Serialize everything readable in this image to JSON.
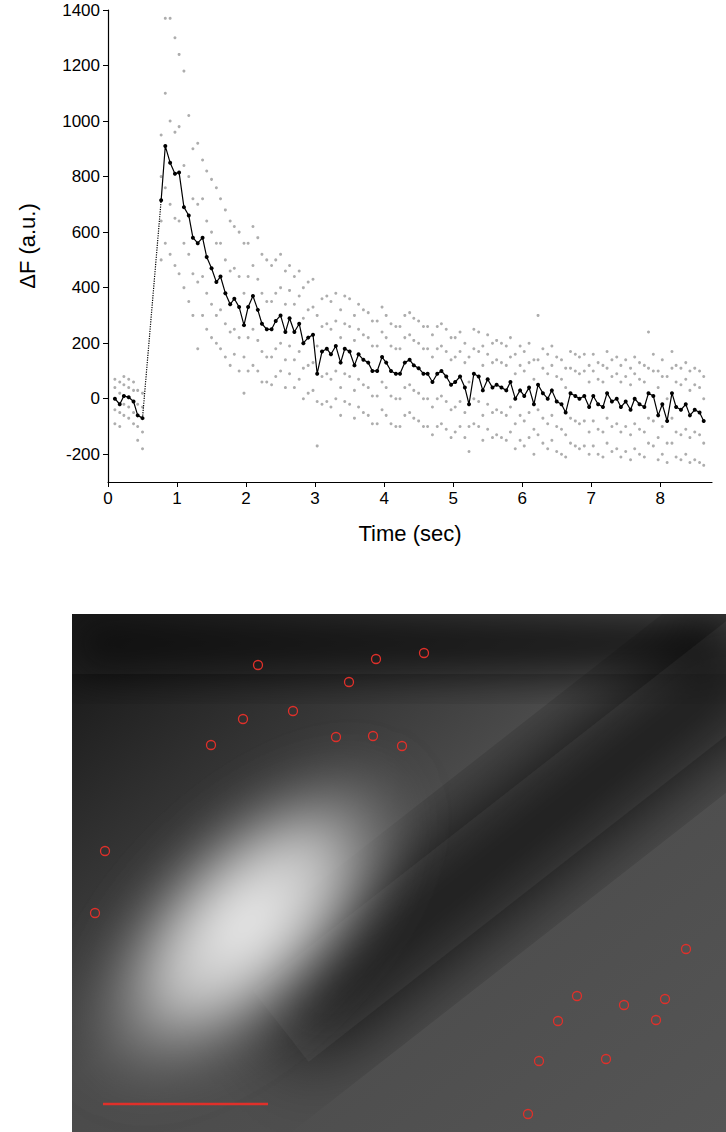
{
  "chart_data": {
    "type": "scatter",
    "x_label": "Time (sec)",
    "y_label": "ΔF (a.u.)",
    "xlim": [
      0,
      8.75
    ],
    "xticks": [
      0,
      1,
      2,
      3,
      4,
      5,
      6,
      7,
      8
    ],
    "ylim": [
      -300,
      1400
    ],
    "yticks": [
      -200,
      0,
      200,
      400,
      600,
      800,
      1000,
      1200,
      1400
    ],
    "grid": false,
    "series": [
      {
        "type": "scatter",
        "color": "#999999",
        "marker": "circle",
        "x": [
          0.1,
          0.17,
          0.23,
          0.3,
          0.37,
          0.43,
          0.5,
          0.77,
          0.83,
          0.9,
          0.97,
          1.03,
          1.1,
          1.17,
          1.23,
          1.3,
          1.37,
          1.43,
          1.5,
          1.57,
          1.63,
          1.7,
          1.77,
          1.83,
          1.9,
          1.97,
          2.03,
          2.1,
          2.17,
          2.23,
          2.3,
          2.37,
          2.43,
          2.5,
          2.57,
          2.63,
          2.7,
          2.77,
          2.83,
          2.9,
          2.97,
          3.03,
          3.1,
          3.17,
          3.23,
          3.3,
          3.37,
          3.43,
          3.5,
          3.57,
          3.63,
          3.7,
          3.77,
          3.83,
          3.9,
          3.97,
          4.03,
          4.1,
          4.17,
          4.23,
          4.3,
          4.37,
          4.43,
          4.5,
          4.57,
          4.63,
          4.7,
          4.77,
          4.83,
          4.9,
          4.97,
          5.03,
          5.1,
          5.17,
          5.23,
          5.3,
          5.37,
          5.43,
          5.5,
          5.57,
          5.63,
          5.7,
          5.77,
          5.83,
          5.9,
          5.97,
          6.03,
          6.1,
          6.17,
          6.23,
          6.3,
          6.37,
          6.43,
          6.5,
          6.57,
          6.63,
          6.7,
          6.77,
          6.83,
          6.9,
          6.97,
          7.03,
          7.1,
          7.17,
          7.23,
          7.3,
          7.37,
          7.43,
          7.5,
          7.57,
          7.63,
          7.7,
          7.77,
          7.83,
          7.9,
          7.97,
          8.03,
          8.1,
          8.17,
          8.23,
          8.3,
          8.37,
          8.43,
          8.5,
          8.57,
          8.63
        ],
        "values": [
          [
            -90,
            -40,
            40,
            70
          ],
          [
            -100,
            -50,
            20,
            60
          ],
          [
            -60,
            -20,
            50,
            80
          ],
          [
            -70,
            -30,
            40,
            70
          ],
          [
            -90,
            -50,
            30,
            60
          ],
          [
            -150,
            -100,
            -20,
            30
          ],
          [
            -180,
            -120,
            -30,
            20
          ],
          [
            500,
            640,
            800,
            950
          ],
          [
            560,
            760,
            1100,
            1370
          ],
          [
            520,
            700,
            1000,
            1370
          ],
          [
            480,
            650,
            960,
            1300
          ],
          [
            450,
            640,
            980,
            1240
          ],
          [
            400,
            560,
            840,
            1180
          ],
          [
            350,
            520,
            800,
            1020
          ],
          [
            300,
            450,
            720,
            900
          ],
          [
            180,
            420,
            700,
            920
          ],
          [
            300,
            440,
            720,
            860
          ],
          [
            250,
            380,
            640,
            820
          ],
          [
            220,
            340,
            600,
            790
          ],
          [
            200,
            300,
            560,
            760
          ],
          [
            180,
            320,
            560,
            720
          ],
          [
            150,
            270,
            500,
            680
          ],
          [
            120,
            240,
            460,
            640
          ],
          [
            160,
            250,
            470,
            620
          ],
          [
            100,
            220,
            440,
            600
          ],
          [
            20,
            150,
            380,
            560
          ],
          [
            100,
            220,
            440,
            560
          ],
          [
            120,
            250,
            480,
            620
          ],
          [
            100,
            210,
            430,
            580
          ],
          [
            60,
            170,
            380,
            520
          ],
          [
            60,
            150,
            350,
            500
          ],
          [
            50,
            150,
            350,
            480
          ],
          [
            80,
            180,
            380,
            500
          ],
          [
            100,
            200,
            400,
            520
          ],
          [
            40,
            140,
            340,
            460
          ],
          [
            90,
            190,
            390,
            480
          ],
          [
            40,
            140,
            340,
            440
          ],
          [
            70,
            170,
            370,
            460
          ],
          [
            0,
            110,
            290,
            400
          ],
          [
            20,
            120,
            320,
            420
          ],
          [
            30,
            130,
            330,
            430
          ],
          [
            -170,
            -10,
            190,
            300
          ],
          [
            -20,
            80,
            260,
            360
          ],
          [
            -10,
            90,
            270,
            370
          ],
          [
            -30,
            70,
            250,
            350
          ],
          [
            0,
            100,
            280,
            380
          ],
          [
            -60,
            40,
            220,
            320
          ],
          [
            -10,
            90,
            270,
            370
          ],
          [
            -20,
            80,
            260,
            360
          ],
          [
            -70,
            30,
            210,
            300
          ],
          [
            -30,
            70,
            250,
            340
          ],
          [
            -50,
            50,
            230,
            320
          ],
          [
            -60,
            40,
            220,
            310
          ],
          [
            -90,
            10,
            190,
            280
          ],
          [
            -90,
            10,
            190,
            280
          ],
          [
            -40,
            60,
            240,
            330
          ],
          [
            -60,
            40,
            220,
            300
          ],
          [
            -90,
            10,
            190,
            270
          ],
          [
            -100,
            0,
            180,
            260
          ],
          [
            -100,
            0,
            180,
            260
          ],
          [
            -60,
            40,
            220,
            300
          ],
          [
            -50,
            50,
            230,
            310
          ],
          [
            -70,
            30,
            210,
            290
          ],
          [
            -80,
            20,
            200,
            280
          ],
          [
            -100,
            0,
            180,
            260
          ],
          [
            -100,
            0,
            180,
            260
          ],
          [
            -130,
            -30,
            150,
            230
          ],
          [
            -100,
            0,
            180,
            260
          ],
          [
            -90,
            10,
            190,
            270
          ],
          [
            -110,
            -10,
            170,
            250
          ],
          [
            -140,
            -40,
            140,
            220
          ],
          [
            -120,
            -30,
            150,
            220
          ],
          [
            -100,
            -10,
            170,
            240
          ],
          [
            -140,
            -50,
            130,
            200
          ],
          [
            -190,
            -100,
            60,
            150
          ],
          [
            -90,
            0,
            180,
            250
          ],
          [
            -100,
            -10,
            170,
            240
          ],
          [
            -150,
            -60,
            120,
            190
          ],
          [
            -110,
            -20,
            160,
            230
          ],
          [
            -140,
            -50,
            130,
            200
          ],
          [
            -130,
            -40,
            140,
            210
          ],
          [
            -140,
            -50,
            130,
            200
          ],
          [
            -150,
            -60,
            120,
            190
          ],
          [
            -120,
            -30,
            150,
            220
          ],
          [
            -180,
            -90,
            90,
            160
          ],
          [
            -150,
            -60,
            120,
            190
          ],
          [
            -170,
            -80,
            100,
            170
          ],
          [
            -140,
            -50,
            130,
            200
          ],
          [
            -200,
            -110,
            70,
            140
          ],
          [
            -130,
            -40,
            140,
            300
          ],
          [
            -160,
            -70,
            110,
            180
          ],
          [
            -180,
            -90,
            90,
            160
          ],
          [
            -150,
            -60,
            120,
            190
          ],
          [
            -190,
            -100,
            80,
            150
          ],
          [
            -200,
            -110,
            70,
            140
          ],
          [
            -210,
            -130,
            40,
            110
          ],
          [
            -160,
            -70,
            110,
            170
          ],
          [
            -170,
            -80,
            100,
            160
          ],
          [
            -180,
            -90,
            90,
            150
          ],
          [
            -170,
            -80,
            100,
            160
          ],
          [
            -200,
            -120,
            60,
            120
          ],
          [
            -170,
            -80,
            100,
            160
          ],
          [
            -200,
            -110,
            70,
            130
          ],
          [
            -210,
            -120,
            60,
            120
          ],
          [
            -160,
            -70,
            110,
            170
          ],
          [
            -190,
            -100,
            80,
            140
          ],
          [
            -180,
            -90,
            90,
            150
          ],
          [
            -210,
            -120,
            60,
            120
          ],
          [
            -190,
            -100,
            80,
            140
          ],
          [
            -220,
            -130,
            50,
            110
          ],
          [
            -180,
            -90,
            90,
            150
          ],
          [
            -200,
            -110,
            70,
            130
          ],
          [
            -210,
            -120,
            60,
            120
          ],
          [
            -160,
            -70,
            110,
            240
          ],
          [
            -170,
            -80,
            100,
            160
          ],
          [
            -220,
            -140,
            40,
            100
          ],
          [
            -200,
            -100,
            80,
            140
          ],
          [
            -230,
            -160,
            0,
            80
          ],
          [
            -160,
            -70,
            110,
            170
          ],
          [
            -210,
            -120,
            60,
            120
          ],
          [
            -220,
            -130,
            50,
            110
          ],
          [
            -200,
            -110,
            70,
            130
          ],
          [
            -230,
            -140,
            30,
            100
          ],
          [
            -220,
            -120,
            50,
            110
          ],
          [
            -230,
            -130,
            40,
            100
          ],
          [
            -240,
            -160,
            0,
            80
          ]
        ]
      },
      {
        "type": "line",
        "color": "#000000",
        "line_style": "solid",
        "marker": "circle",
        "x": [
          0.1,
          0.17,
          0.23,
          0.3,
          0.37,
          0.43,
          0.5
        ],
        "values": [
          0,
          -20,
          10,
          5,
          -10,
          -60,
          -70
        ]
      },
      {
        "type": "line",
        "color": "#000000",
        "line_style": "dotted",
        "marker": "none",
        "x": [
          0.5,
          0.77
        ],
        "values": [
          -70,
          715
        ]
      },
      {
        "type": "line",
        "color": "#000000",
        "line_style": "solid",
        "marker": "circle",
        "x": [
          0.77,
          0.83,
          0.9,
          0.97,
          1.03,
          1.1,
          1.17,
          1.23,
          1.3,
          1.37,
          1.43,
          1.5,
          1.57,
          1.63,
          1.7,
          1.77,
          1.83,
          1.9,
          1.97,
          2.03,
          2.1,
          2.17,
          2.23,
          2.3,
          2.37,
          2.43,
          2.5,
          2.57,
          2.63,
          2.7,
          2.77,
          2.83,
          2.9,
          2.97,
          3.03,
          3.1,
          3.17,
          3.23,
          3.3,
          3.37,
          3.43,
          3.5,
          3.57,
          3.63,
          3.7,
          3.77,
          3.83,
          3.9,
          3.97,
          4.03,
          4.1,
          4.17,
          4.23,
          4.3,
          4.37,
          4.43,
          4.5,
          4.57,
          4.63,
          4.7,
          4.77,
          4.83,
          4.9,
          4.97,
          5.03,
          5.1,
          5.17,
          5.23,
          5.3,
          5.37,
          5.43,
          5.5,
          5.57,
          5.63,
          5.7,
          5.77,
          5.83,
          5.9,
          5.97,
          6.03,
          6.1,
          6.17,
          6.23,
          6.3,
          6.37,
          6.43,
          6.5,
          6.57,
          6.63,
          6.7,
          6.77,
          6.83,
          6.9,
          6.97,
          7.03,
          7.1,
          7.17,
          7.23,
          7.3,
          7.37,
          7.43,
          7.5,
          7.57,
          7.63,
          7.7,
          7.77,
          7.83,
          7.9,
          7.97,
          8.03,
          8.1,
          8.17,
          8.23,
          8.3,
          8.37,
          8.43,
          8.5,
          8.57,
          8.63
        ],
        "values": [
          715,
          910,
          850,
          810,
          815,
          690,
          660,
          580,
          560,
          580,
          510,
          470,
          420,
          440,
          380,
          340,
          360,
          330,
          265,
          330,
          370,
          320,
          270,
          250,
          250,
          280,
          300,
          240,
          290,
          240,
          270,
          200,
          220,
          230,
          90,
          170,
          180,
          160,
          190,
          130,
          180,
          170,
          120,
          160,
          140,
          130,
          100,
          100,
          150,
          130,
          100,
          90,
          90,
          130,
          140,
          120,
          110,
          90,
          90,
          60,
          90,
          100,
          80,
          50,
          60,
          80,
          40,
          -20,
          90,
          80,
          30,
          70,
          40,
          50,
          40,
          30,
          60,
          0,
          30,
          10,
          40,
          -20,
          50,
          20,
          0,
          30,
          -10,
          -20,
          -50,
          20,
          10,
          0,
          10,
          -30,
          10,
          -20,
          -30,
          20,
          -10,
          0,
          -30,
          -10,
          -40,
          0,
          -20,
          -30,
          20,
          10,
          -60,
          -20,
          -80,
          20,
          -30,
          -40,
          -20,
          -60,
          -40,
          -50,
          -80
        ]
      }
    ]
  }
}
